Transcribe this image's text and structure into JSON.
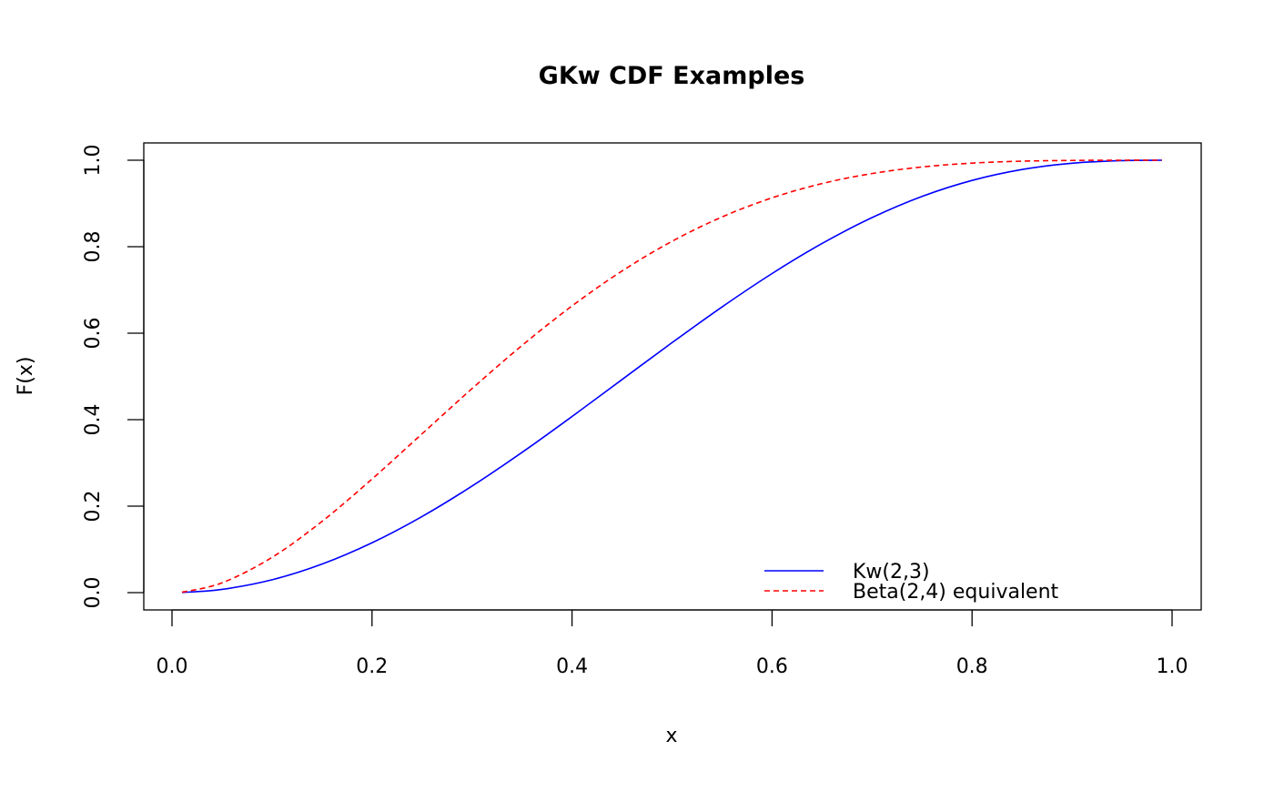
{
  "chart_data": {
    "type": "line",
    "title": "GKw CDF Examples",
    "xlabel": "x",
    "ylabel": "F(x)",
    "xlim": [
      0,
      1
    ],
    "ylim": [
      0,
      1
    ],
    "grid": false,
    "x_ticks": [
      "0.0",
      "0.2",
      "0.4",
      "0.6",
      "0.8",
      "1.0"
    ],
    "y_ticks": [
      "0.0",
      "0.2",
      "0.4",
      "0.6",
      "0.8",
      "1.0"
    ],
    "legend_position": "bottom-right",
    "x": [
      0.01,
      0.05,
      0.1,
      0.15,
      0.2,
      0.25,
      0.3,
      0.35,
      0.4,
      0.45,
      0.5,
      0.55,
      0.6,
      0.65,
      0.7,
      0.75,
      0.8,
      0.85,
      0.9,
      0.95,
      0.99
    ],
    "series": [
      {
        "name": "Kw(2,3)",
        "color": "#0000ff",
        "dash": "solid",
        "values": [
          0.0003,
          0.0075,
          0.0297,
          0.066,
          0.1153,
          0.176,
          0.2464,
          0.3243,
          0.4073,
          0.4928,
          0.5781,
          0.6607,
          0.7379,
          0.8074,
          0.8673,
          0.9163,
          0.9533,
          0.9786,
          0.9931,
          0.9991,
          1.0
        ]
      },
      {
        "name": "Beta(2,4) equivalent",
        "color": "#ff0000",
        "dash": "dashed",
        "values": [
          0.001,
          0.0226,
          0.0815,
          0.1648,
          0.2627,
          0.3672,
          0.4718,
          0.5716,
          0.663,
          0.7438,
          0.8125,
          0.8688,
          0.913,
          0.946,
          0.9692,
          0.9844,
          0.9933,
          0.9978,
          0.9995,
          1.0,
          1.0
        ]
      }
    ]
  }
}
